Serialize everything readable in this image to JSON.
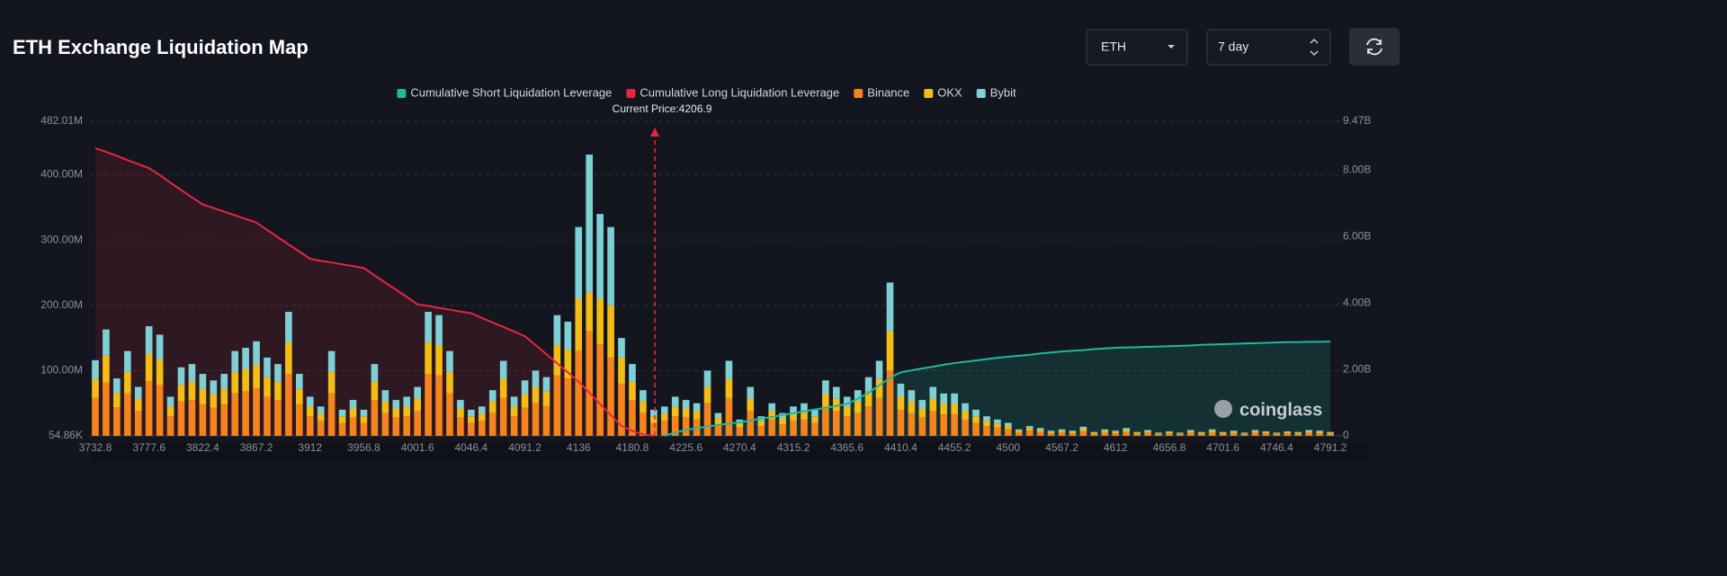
{
  "controls": {
    "asset": "ETH",
    "period": "7 day"
  },
  "chart_data": {
    "type": "bar",
    "title": "ETH Exchange Liquidation Map",
    "annotation": "Current Price:4206.9",
    "watermark": "coinglass",
    "categories": [
      "3732.8",
      null,
      null,
      null,
      null,
      "3777.6",
      null,
      null,
      null,
      null,
      "3822.4",
      null,
      null,
      null,
      null,
      "3867.2",
      null,
      null,
      null,
      null,
      "3912",
      null,
      null,
      null,
      null,
      "3956.8",
      null,
      null,
      null,
      null,
      "4001.6",
      null,
      null,
      null,
      null,
      "4046.4",
      null,
      null,
      null,
      null,
      "4091.2",
      null,
      null,
      null,
      null,
      "4136",
      null,
      null,
      null,
      null,
      "4180.8",
      null,
      null,
      null,
      null,
      "4225.6",
      null,
      null,
      null,
      null,
      "4270.4",
      null,
      null,
      null,
      null,
      "4315.2",
      null,
      null,
      null,
      null,
      "4365.6",
      null,
      null,
      null,
      null,
      "4410.4",
      null,
      null,
      null,
      null,
      "4455.2",
      null,
      null,
      null,
      null,
      "4500",
      null,
      null,
      null,
      null,
      "4567.2",
      null,
      null,
      null,
      null,
      "4612",
      null,
      null,
      null,
      null,
      "4656.8",
      null,
      null,
      null,
      null,
      "4701.6",
      null,
      null,
      null,
      null,
      "4746.4",
      null,
      null,
      null,
      null,
      "4791.2"
    ],
    "series": [
      {
        "name": "Cumulative Short Liquidation Leverage",
        "type": "line",
        "axis": "y2",
        "color": "#1fb99c",
        "fill": "rgba(31,185,156,0.16)",
        "values": [
          null,
          null,
          null,
          null,
          null,
          null,
          null,
          null,
          null,
          null,
          null,
          null,
          null,
          null,
          null,
          null,
          null,
          null,
          null,
          null,
          null,
          null,
          null,
          null,
          null,
          null,
          null,
          null,
          null,
          null,
          null,
          null,
          null,
          null,
          null,
          null,
          null,
          null,
          null,
          null,
          null,
          null,
          null,
          null,
          null,
          null,
          null,
          null,
          null,
          null,
          null,
          null,
          null,
          0,
          0.1,
          0.18,
          0.23,
          0.28,
          0.33,
          0.37,
          0.41,
          0.46,
          0.52,
          0.57,
          0.63,
          0.68,
          0.74,
          0.79,
          0.85,
          0.9,
          0.96,
          1.12,
          1.3,
          1.52,
          1.75,
          1.91,
          1.97,
          2.03,
          2.08,
          2.14,
          2.19,
          2.23,
          2.27,
          2.31,
          2.35,
          2.38,
          2.41,
          2.44,
          2.48,
          2.51,
          2.54,
          2.56,
          2.58,
          2.61,
          2.63,
          2.65,
          2.66,
          2.67,
          2.68,
          2.69,
          2.7,
          2.71,
          2.72,
          2.74,
          2.75,
          2.76,
          2.77,
          2.78,
          2.79,
          2.8,
          2.81,
          2.82,
          2.82,
          2.83,
          2.83,
          2.84
        ]
      },
      {
        "name": "Cumulative Long Liquidation Leverage",
        "type": "line",
        "axis": "y2",
        "color": "#e8253f",
        "fill": "rgba(232,37,63,0.13)",
        "values": [
          8.66,
          8.55,
          8.43,
          8.3,
          8.18,
          8.06,
          7.85,
          7.62,
          7.4,
          7.18,
          6.97,
          6.86,
          6.75,
          6.64,
          6.53,
          6.42,
          6.2,
          5.98,
          5.76,
          5.55,
          5.33,
          5.27,
          5.22,
          5.16,
          5.11,
          5.05,
          4.83,
          4.61,
          4.4,
          4.18,
          3.96,
          3.91,
          3.85,
          3.8,
          3.74,
          3.69,
          3.55,
          3.41,
          3.28,
          3.14,
          3.0,
          2.73,
          2.46,
          2.18,
          1.91,
          1.64,
          1.3,
          0.96,
          0.62,
          0.3,
          0.14,
          0.05,
          0,
          null,
          null,
          null,
          null,
          null,
          null,
          null,
          null,
          null,
          null,
          null,
          null,
          null,
          null,
          null,
          null,
          null,
          null,
          null,
          null,
          null,
          null,
          null,
          null,
          null,
          null,
          null,
          null,
          null,
          null,
          null,
          null,
          null,
          null,
          null,
          null,
          null,
          null,
          null,
          null,
          null,
          null,
          null,
          null,
          null,
          null,
          null,
          null,
          null,
          null,
          null,
          null,
          null,
          null,
          null,
          null,
          null,
          null,
          null,
          null,
          null,
          null,
          null
        ]
      },
      {
        "name": "Binance",
        "color": "#f5841f",
        "values": [
          58,
          82,
          44,
          65,
          38,
          84,
          78,
          30,
          53,
          55,
          48,
          43,
          48,
          65,
          68,
          73,
          60,
          55,
          95,
          48,
          30,
          23,
          65,
          20,
          28,
          20,
          55,
          35,
          28,
          30,
          38,
          95,
          93,
          65,
          28,
          20,
          23,
          35,
          58,
          30,
          43,
          50,
          45,
          93,
          88,
          130,
          160,
          140,
          120,
          80,
          55,
          35,
          20,
          23,
          30,
          28,
          25,
          50,
          18,
          58,
          13,
          38,
          15,
          25,
          18,
          23,
          25,
          20,
          43,
          38,
          30,
          35,
          45,
          58,
          100,
          40,
          35,
          28,
          38,
          33,
          33,
          25,
          20,
          15,
          13,
          10,
          5,
          8,
          6,
          4,
          5,
          4,
          7,
          3,
          5,
          4,
          6,
          3,
          5,
          3,
          4,
          3,
          5,
          3,
          5,
          3,
          4,
          3,
          5,
          4,
          3,
          4,
          3,
          5,
          4,
          3
        ]
      },
      {
        "name": "OKX",
        "color": "#f4bd16",
        "values": [
          29,
          41,
          22,
          33,
          19,
          42,
          39,
          15,
          26,
          28,
          24,
          21,
          24,
          33,
          34,
          36,
          30,
          28,
          48,
          24,
          15,
          11,
          33,
          10,
          14,
          10,
          28,
          18,
          14,
          15,
          19,
          48,
          46,
          33,
          14,
          10,
          11,
          18,
          29,
          15,
          21,
          25,
          23,
          46,
          44,
          80,
          60,
          70,
          80,
          40,
          28,
          18,
          10,
          11,
          15,
          14,
          13,
          25,
          9,
          29,
          6,
          19,
          8,
          13,
          9,
          11,
          13,
          10,
          21,
          19,
          15,
          18,
          23,
          29,
          60,
          20,
          18,
          14,
          19,
          16,
          16,
          13,
          10,
          8,
          6,
          5,
          3,
          4,
          3,
          2,
          3,
          2,
          4,
          2,
          3,
          2,
          3,
          2,
          2,
          1,
          2,
          1,
          2,
          2,
          3,
          2,
          2,
          1,
          2,
          2,
          1,
          2,
          2,
          2,
          2,
          2
        ]
      },
      {
        "name": "Bybit",
        "color": "#7fcfd6",
        "values": [
          29,
          40,
          22,
          32,
          18,
          42,
          38,
          15,
          26,
          27,
          23,
          21,
          23,
          32,
          33,
          36,
          30,
          27,
          47,
          23,
          15,
          11,
          32,
          10,
          13,
          10,
          27,
          17,
          13,
          15,
          18,
          47,
          46,
          32,
          13,
          10,
          11,
          17,
          28,
          15,
          21,
          25,
          22,
          46,
          43,
          110,
          211,
          130,
          120,
          30,
          27,
          17,
          10,
          11,
          15,
          13,
          12,
          25,
          8,
          28,
          6,
          18,
          7,
          12,
          8,
          11,
          12,
          10,
          21,
          18,
          15,
          17,
          22,
          28,
          75,
          20,
          17,
          13,
          18,
          16,
          16,
          12,
          10,
          7,
          6,
          5,
          2,
          3,
          3,
          2,
          2,
          2,
          3,
          1,
          2,
          2,
          3,
          1,
          2,
          1,
          1,
          1,
          2,
          1,
          2,
          1,
          2,
          1,
          2,
          1,
          1,
          1,
          1,
          2,
          2,
          1
        ]
      }
    ],
    "ylim": [
      0.05486,
      482.01
    ],
    "yticks": [
      {
        "value": 0.05486,
        "label": "54.86K"
      },
      {
        "value": 100,
        "label": "100.00M"
      },
      {
        "value": 200,
        "label": "200.00M"
      },
      {
        "value": 300,
        "label": "300.00M"
      },
      {
        "value": 400,
        "label": "400.00M"
      },
      {
        "value": 482.01,
        "label": "482.01M"
      }
    ],
    "y2lim": [
      0,
      9.47
    ],
    "y2ticks": [
      0,
      {
        "value": 2,
        "label": "2.00B"
      },
      {
        "value": 4,
        "label": "4.00B"
      },
      {
        "value": 6,
        "label": "6.00B"
      },
      {
        "value": 8,
        "label": "8.00B"
      },
      {
        "value": 9.47,
        "label": "9.47B"
      }
    ],
    "grid": true
  }
}
